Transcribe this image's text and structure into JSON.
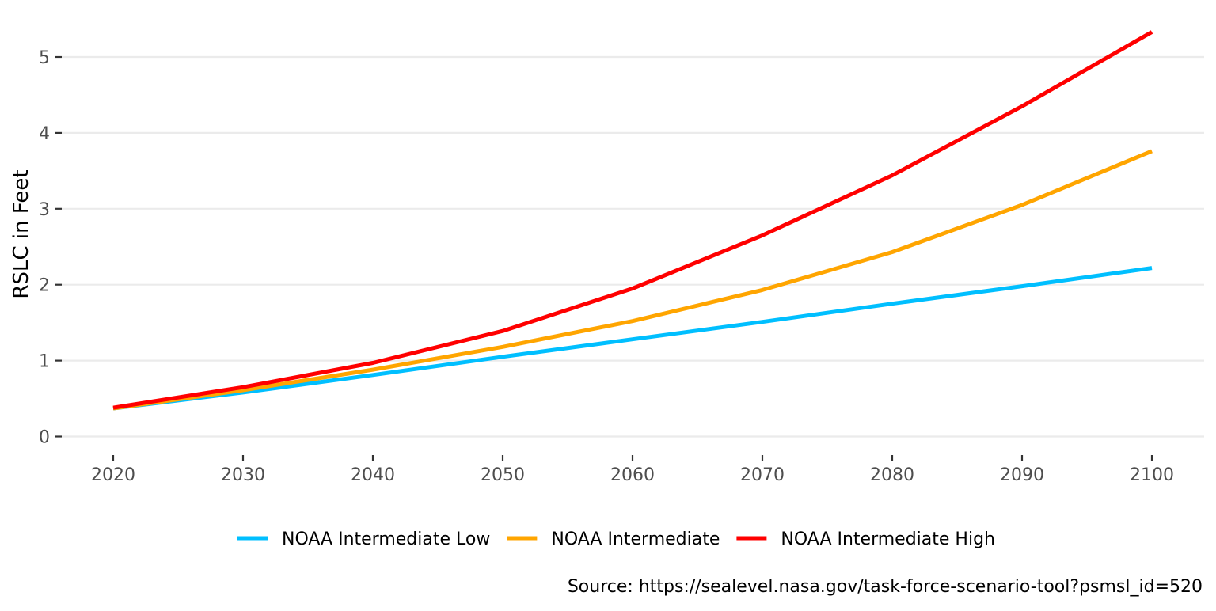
{
  "chart_data": {
    "type": "line",
    "title": "",
    "xlabel": "",
    "ylabel": "RSLC in Feet",
    "x": [
      2020,
      2030,
      2040,
      2050,
      2060,
      2070,
      2080,
      2090,
      2100
    ],
    "x_ticks": [
      "2020",
      "2030",
      "2040",
      "2050",
      "2060",
      "2070",
      "2080",
      "2090",
      "2100"
    ],
    "y_ticks": [
      "0",
      "1",
      "2",
      "3",
      "4",
      "5"
    ],
    "ylim": [
      0,
      5.4
    ],
    "grid": "horizontal major",
    "legend_position": "bottom",
    "series": [
      {
        "name": "NOAA Intermediate Low",
        "color": "#00BFFF",
        "values": [
          0.37,
          0.58,
          0.81,
          1.05,
          1.28,
          1.51,
          1.75,
          1.98,
          2.22
        ]
      },
      {
        "name": "NOAA Intermediate",
        "color": "#FFA500",
        "values": [
          0.37,
          0.61,
          0.88,
          1.18,
          1.52,
          1.93,
          2.43,
          3.05,
          3.76
        ]
      },
      {
        "name": "NOAA Intermediate High",
        "color": "#FF0000",
        "values": [
          0.38,
          0.65,
          0.97,
          1.39,
          1.95,
          2.65,
          3.44,
          4.35,
          5.33
        ]
      }
    ],
    "caption": "Source: https://sealevel.nasa.gov/task-force-scenario-tool?psmsl_id=520"
  }
}
